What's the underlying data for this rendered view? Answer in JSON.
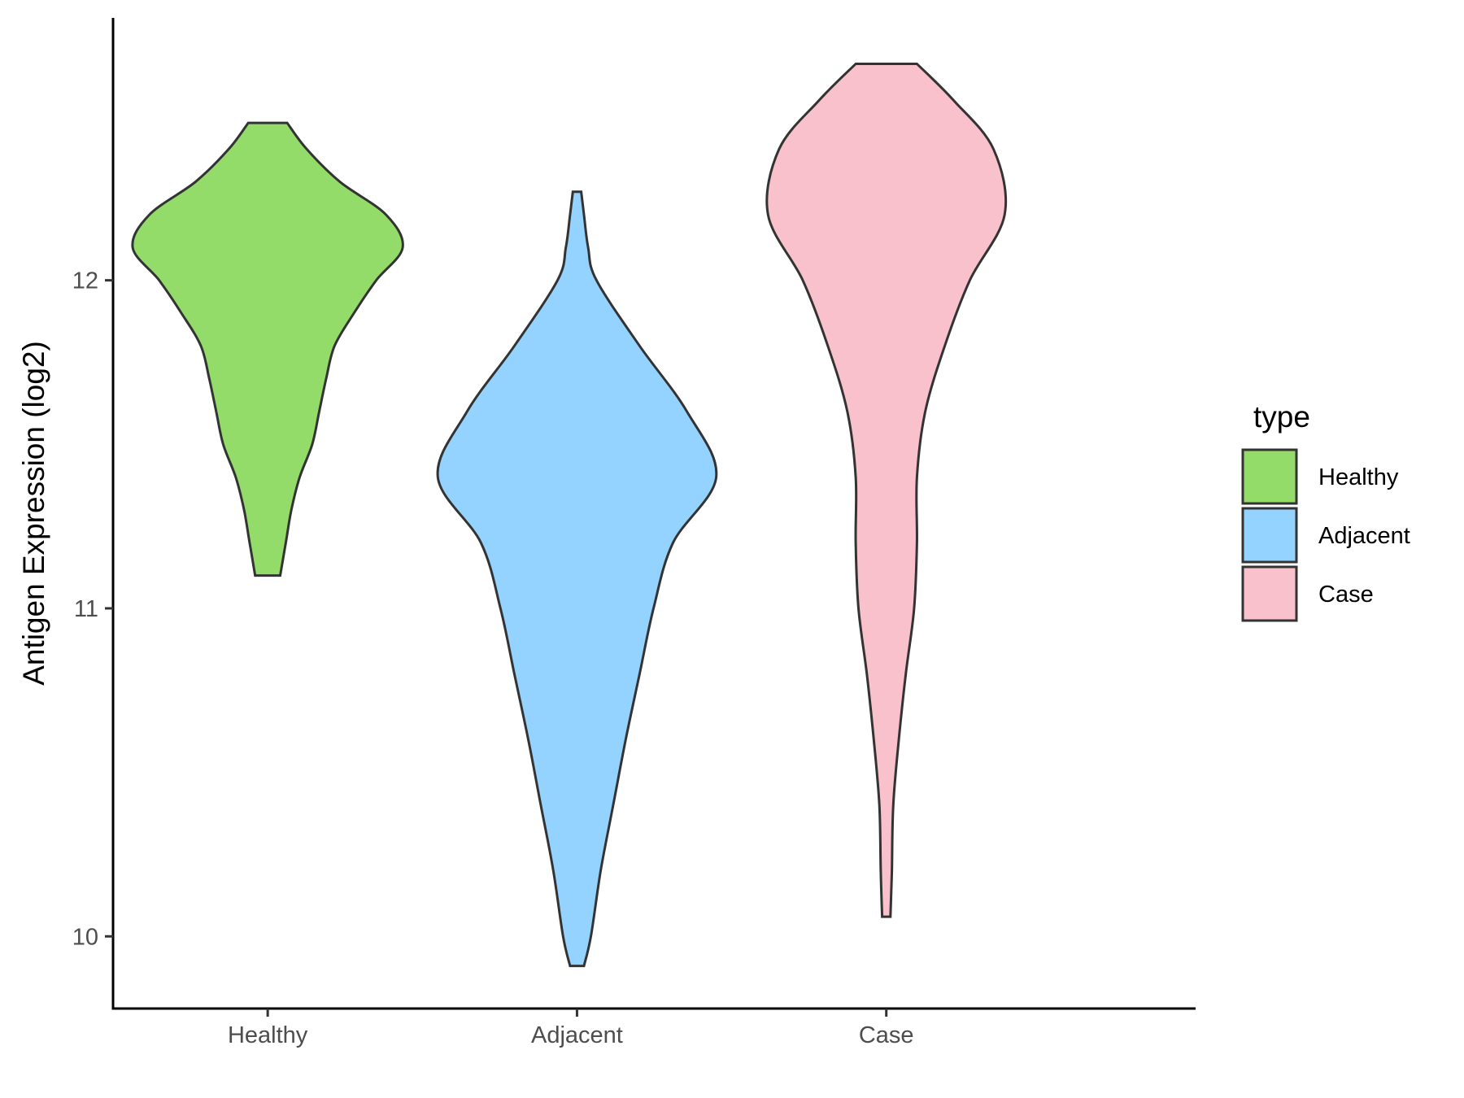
{
  "chart_data": {
    "type": "violin",
    "ylabel": "Antigen Expression (log2)",
    "xlabel": "",
    "categories": [
      "Healthy",
      "Adjacent",
      "Case"
    ],
    "ylim": [
      9.78,
      12.8
    ],
    "yticks": [
      10,
      11,
      12
    ],
    "grid": false,
    "legend": {
      "title": "type",
      "position": "right",
      "entries": [
        "Healthy",
        "Adjacent",
        "Case"
      ]
    },
    "series": [
      {
        "name": "Healthy",
        "color": "#93DC6A",
        "y_min": 11.1,
        "y_max": 12.48,
        "profile": [
          [
            11.1,
            0.09
          ],
          [
            11.2,
            0.13
          ],
          [
            11.3,
            0.17
          ],
          [
            11.4,
            0.23
          ],
          [
            11.5,
            0.32
          ],
          [
            11.6,
            0.37
          ],
          [
            11.7,
            0.42
          ],
          [
            11.8,
            0.48
          ],
          [
            11.9,
            0.62
          ],
          [
            12.0,
            0.78
          ],
          [
            12.1,
            0.97
          ],
          [
            12.2,
            0.85
          ],
          [
            12.3,
            0.52
          ],
          [
            12.4,
            0.28
          ],
          [
            12.48,
            0.14
          ]
        ]
      },
      {
        "name": "Adjacent",
        "color": "#94D3FF",
        "y_min": 9.91,
        "y_max": 12.27,
        "profile": [
          [
            9.91,
            0.05
          ],
          [
            10.0,
            0.1
          ],
          [
            10.2,
            0.17
          ],
          [
            10.4,
            0.26
          ],
          [
            10.6,
            0.35
          ],
          [
            10.8,
            0.45
          ],
          [
            11.0,
            0.55
          ],
          [
            11.2,
            0.69
          ],
          [
            11.4,
            1.0
          ],
          [
            11.6,
            0.79
          ],
          [
            11.8,
            0.45
          ],
          [
            12.0,
            0.14
          ],
          [
            12.1,
            0.08
          ],
          [
            12.2,
            0.05
          ],
          [
            12.27,
            0.03
          ]
        ]
      },
      {
        "name": "Case",
        "color": "#F8C1CC",
        "y_min": 10.06,
        "y_max": 12.66,
        "profile": [
          [
            10.06,
            0.03
          ],
          [
            10.2,
            0.04
          ],
          [
            10.4,
            0.05
          ],
          [
            10.6,
            0.09
          ],
          [
            10.8,
            0.14
          ],
          [
            11.0,
            0.2
          ],
          [
            11.2,
            0.22
          ],
          [
            11.4,
            0.22
          ],
          [
            11.6,
            0.28
          ],
          [
            11.8,
            0.42
          ],
          [
            12.0,
            0.6
          ],
          [
            12.2,
            0.85
          ],
          [
            12.4,
            0.77
          ],
          [
            12.55,
            0.48
          ],
          [
            12.66,
            0.22
          ]
        ]
      }
    ]
  }
}
